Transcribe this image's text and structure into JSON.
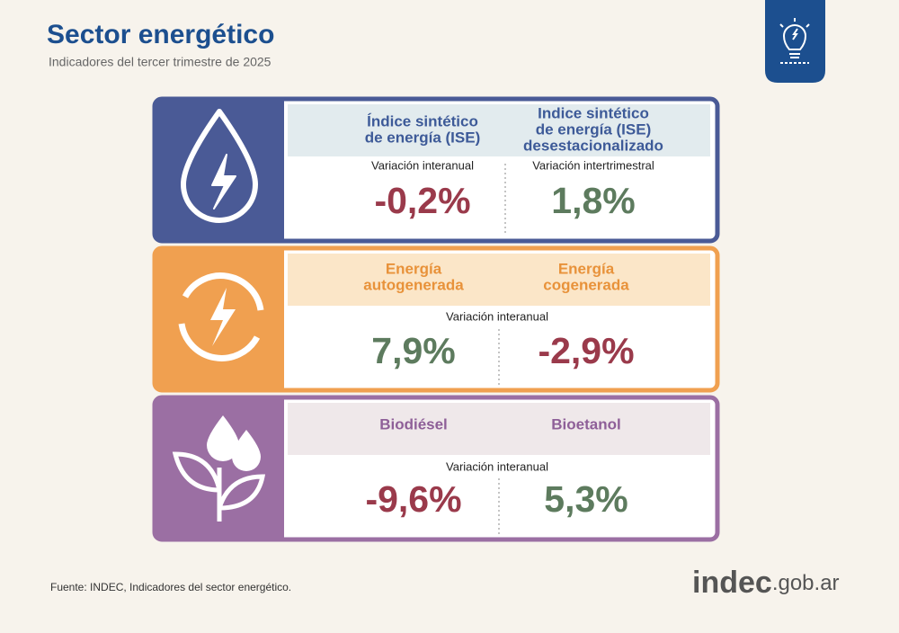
{
  "header": {
    "title": "Sector energético",
    "subtitle": "Indicadores del tercer trimestre de 2025"
  },
  "cards": [
    {
      "columns": [
        {
          "title_lines": [
            "Índice sintético",
            "de energía (ISE)"
          ],
          "caption": "Variación interanual",
          "value": "-0,2%"
        },
        {
          "title_lines": [
            "Indice sintético",
            "de energía (ISE)",
            "desestacionalizado"
          ],
          "caption": "Variación intertrimestral",
          "value": "1,8%"
        }
      ]
    },
    {
      "caption": "Variación interanual",
      "columns": [
        {
          "title_lines": [
            "Energía",
            "autogenerada"
          ],
          "value": "7,9%"
        },
        {
          "title_lines": [
            "Energía",
            "cogenerada"
          ],
          "value": "-2,9%"
        }
      ]
    },
    {
      "caption": "Variación interanual",
      "columns": [
        {
          "title_lines": [
            "Biodiésel"
          ],
          "value": "-9,6%"
        },
        {
          "title_lines": [
            "Bioetanol"
          ],
          "value": "5,3%"
        }
      ]
    }
  ],
  "footer": {
    "source": "Fuente: INDEC, Indicadores del sector energético.",
    "logo_main": "indec",
    "logo_domain": ".gob.ar"
  }
}
